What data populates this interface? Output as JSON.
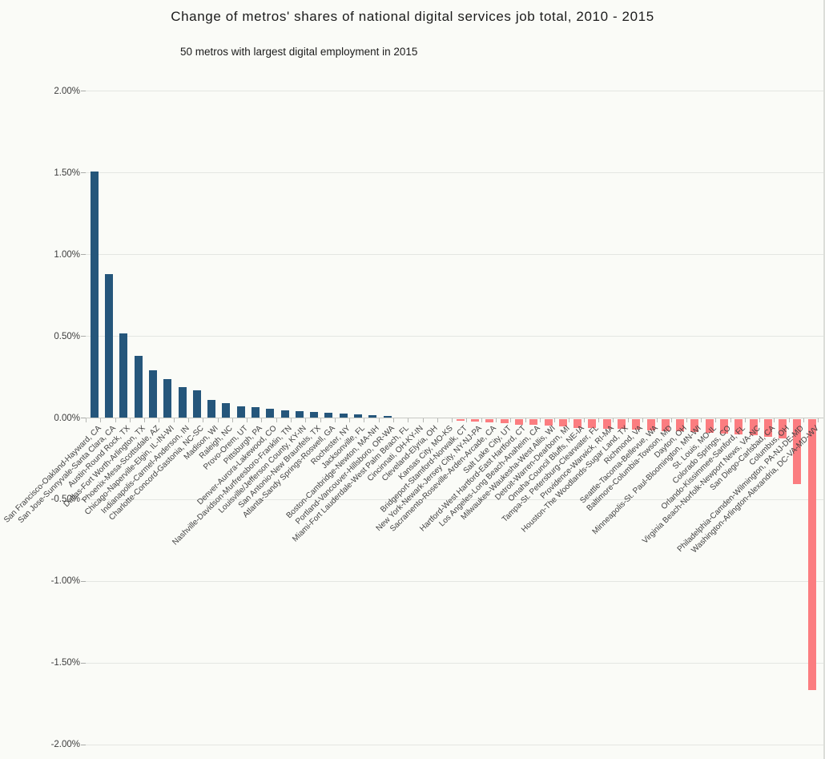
{
  "chart": {
    "title": "Change of metros' shares of national digital services job total, 2010 - 2015",
    "subtitle": "50 metros with largest digital employment in 2015"
  },
  "chart_data": {
    "type": "bar",
    "title": "Change of metros' shares of national digital services job total, 2010 - 2015",
    "subtitle": "50 metros with largest digital employment in 2015",
    "xlabel": "",
    "ylabel": "",
    "ylim": [
      -2.0,
      2.0
    ],
    "grid": true,
    "legend": false,
    "y_tick_values": [
      2.0,
      1.5,
      1.0,
      0.5,
      0.0,
      -0.5,
      -1.0,
      -1.5,
      -2.0
    ],
    "y_tick_labels": [
      "2.00%",
      "1.50%",
      "1.00%",
      "0.50%",
      "0.00%",
      "-0.50%",
      "-1.00%",
      "-1.50%",
      "-2.00%"
    ],
    "value_unit": "%",
    "colors": {
      "positive": "#25567b",
      "negative": "#fb7d80"
    },
    "categories": [
      "San Francisco-Oakland-Hayward, CA",
      "San Jose-Sunnyvale-Santa Clara, CA",
      "Austin-Round Rock, TX",
      "Dallas-Fort Worth-Arlington, TX",
      "Phoenix-Mesa-Scottsdale, AZ",
      "Chicago-Naperville-Elgin, IL-IN-WI",
      "Indianapolis-Carmel-Anderson, IN",
      "Charlotte-Concord-Gastonia, NC-SC",
      "Madison, WI",
      "Raleigh, NC",
      "Provo-Orem, UT",
      "Pittsburgh, PA",
      "Denver-Aurora-Lakewood, CO",
      "Nashville-Davidson-Murfreesboro-Franklin, TN",
      "Louisville/Jefferson County, KY-IN",
      "San Antonio-New Braunfels, TX",
      "Atlanta-Sandy Springs-Roswell, GA",
      "Rochester, NY",
      "Jacksonville, FL",
      "Boston-Cambridge-Newton, MA-NH",
      "Portland-Vancouver-Hillsboro, OR-WA",
      "Miami-Fort Lauderdale-West Palm Beach, FL",
      "Cincinnati, OH-KY-IN",
      "Cleveland-Elyria, OH",
      "Kansas City, MO-KS",
      "Bridgeport-Stamford-Norwalk, CT",
      "New York-Newark-Jersey City, NY-NJ-PA",
      "Sacramento-Roseville-Arden-Arcade, CA",
      "Salt Lake City, UT",
      "Hartford-West Hartford-East Hartford, CT",
      "Los Angeles-Long Beach-Anaheim, CA",
      "Milwaukee-Waukesha-West Allis, WI",
      "Detroit-Warren-Dearborn, MI",
      "Omaha-Council Bluffs, NE-IA",
      "Tampa-St. Petersburg-Clearwater, FL",
      "Providence-Warwick, RI-MA",
      "Houston-The Woodlands-Sugar Land, TX",
      "Richmond, VA",
      "Seattle-Tacoma-Bellevue, WA",
      "Baltimore-Columbia-Towson, MD",
      "Dayton, OH",
      "Minneapolis-St. Paul-Bloomington, MN-WI",
      "St. Louis, MO-IL",
      "Colorado Springs, CO",
      "Orlando-Kissimmee-Sanford, FL",
      "Virginia Beach-Norfolk-Newport News, VA-NC",
      "San Diego-Carlsbad, CA",
      "Columbus, OH",
      "Philadelphia-Camden-Wilmington, PA-NJ-DE-MD",
      "Washington-Arlington-Alexandria, DC-VA-MD-WV"
    ],
    "values": [
      1.51,
      0.88,
      0.52,
      0.38,
      0.29,
      0.24,
      0.19,
      0.17,
      0.11,
      0.09,
      0.07,
      0.065,
      0.058,
      0.046,
      0.04,
      0.037,
      0.031,
      0.028,
      0.023,
      0.019,
      0.013,
      0.007,
      0.002,
      0.0,
      -0.003,
      -0.013,
      -0.017,
      -0.022,
      -0.028,
      -0.035,
      -0.038,
      -0.044,
      -0.049,
      -0.054,
      -0.057,
      -0.06,
      -0.062,
      -0.065,
      -0.07,
      -0.074,
      -0.077,
      -0.081,
      -0.086,
      -0.09,
      -0.097,
      -0.103,
      -0.11,
      -0.122,
      -0.4,
      -1.66
    ]
  }
}
